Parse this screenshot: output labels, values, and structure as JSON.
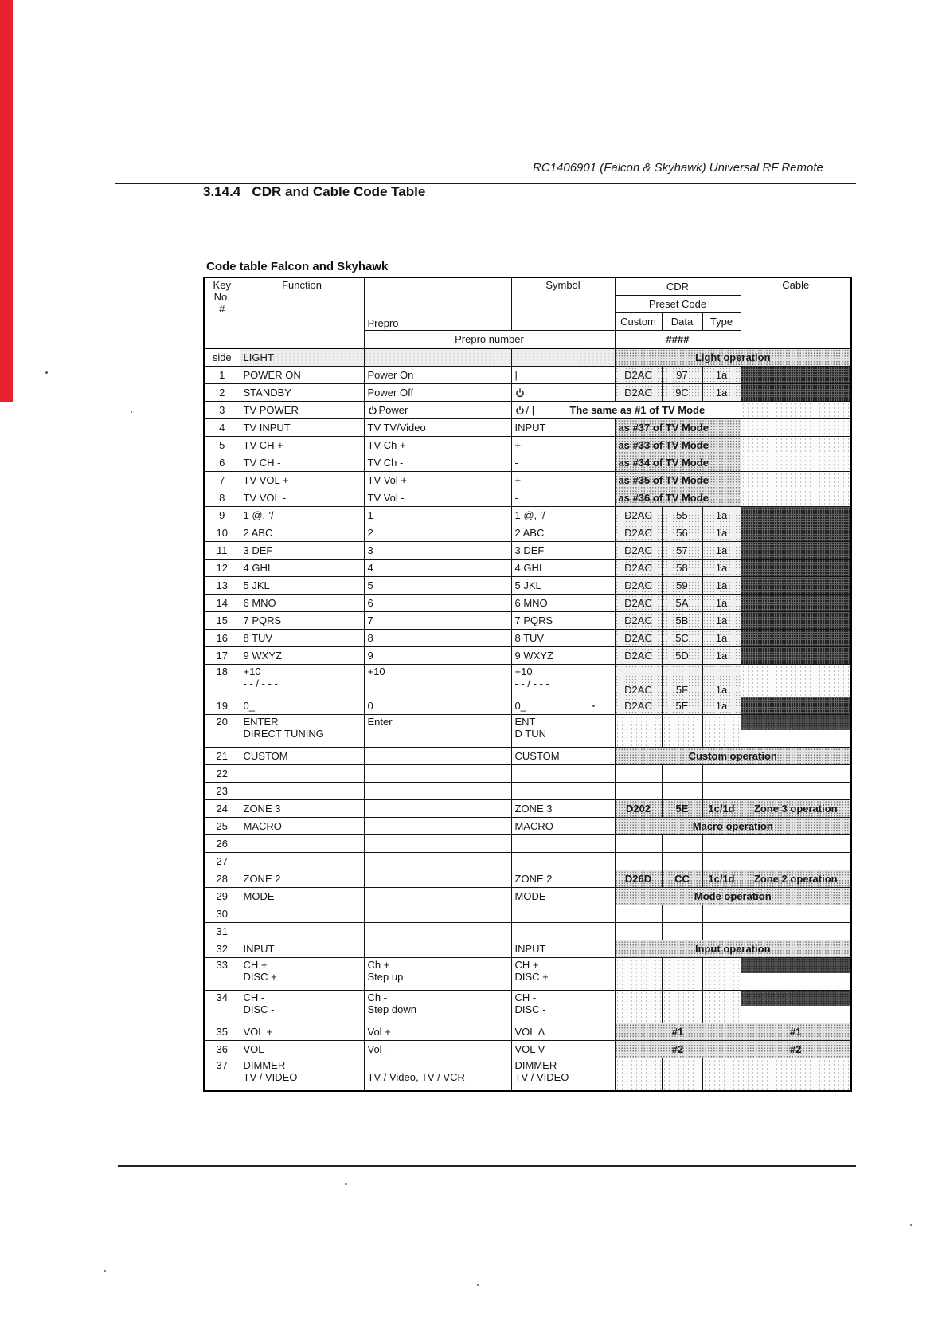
{
  "page": {
    "header_right": "RC1406901 (Falcon & Skyhawk) Universal RF Remote",
    "section_title": "3.14.4   CDR and Cable Code Table",
    "table_caption": "Code table Falcon and Skyhawk"
  },
  "colors": {
    "red_bar": "#e8232e",
    "ink": "#161616"
  },
  "table": {
    "header": {
      "key_lines": [
        "Key",
        "No.",
        "#"
      ],
      "function": "Function",
      "prepro": "Prepro",
      "prepro_number": "Prepro number",
      "symbol": "Symbol",
      "cdr": "CDR",
      "preset_code": "Preset Code",
      "custom": "Custom",
      "data": "Data",
      "type": "Type",
      "hash": "####",
      "cable": "Cable"
    },
    "rows": [
      {
        "no": "side",
        "fn": [
          "LIGHT"
        ],
        "pre": [],
        "sym": [],
        "cdr": {
          "k": "banner4",
          "t": "Light operation"
        },
        "faint": true
      },
      {
        "no": "1",
        "fn": [
          "POWER ON"
        ],
        "pre": [
          "Power On"
        ],
        "sym": [
          "|"
        ],
        "cdr": {
          "k": "codes",
          "c": "D2AC",
          "d": "97",
          "t": "1a"
        },
        "cable": "dark"
      },
      {
        "no": "2",
        "fn": [
          "STANDBY"
        ],
        "pre": [
          "Power Off"
        ],
        "sym": [
          ""
        ],
        "symicon": true,
        "cdr": {
          "k": "codes",
          "c": "D2AC",
          "d": "9C",
          "t": "1a"
        },
        "cable": "dark"
      },
      {
        "no": "3",
        "fn": [
          "TV POWER"
        ],
        "pre": [
          "Power"
        ],
        "preicon": true,
        "sym": [
          "/ |"
        ],
        "symicon": true,
        "cdr": {
          "k": "symnote",
          "t": "The same as #1 of TV Mode"
        },
        "cable": "dot"
      },
      {
        "no": "4",
        "fn": [
          "TV INPUT"
        ],
        "pre": [
          "TV TV/Video"
        ],
        "sym": [
          "INPUT"
        ],
        "cdr": {
          "k": "note",
          "t": "as #37 of TV Mode"
        },
        "cable": "dot"
      },
      {
        "no": "5",
        "fn": [
          "TV CH +"
        ],
        "pre": [
          "TV Ch +"
        ],
        "sym": [
          "+"
        ],
        "cdr": {
          "k": "note",
          "t": "as #33 of TV Mode"
        },
        "cable": "dot"
      },
      {
        "no": "6",
        "fn": [
          "TV CH -"
        ],
        "pre": [
          "TV Ch -"
        ],
        "sym": [
          "-"
        ],
        "cdr": {
          "k": "note",
          "t": "as #34 of TV Mode"
        },
        "cable": "dot"
      },
      {
        "no": "7",
        "fn": [
          "TV VOL +"
        ],
        "pre": [
          "TV Vol +"
        ],
        "sym": [
          "+"
        ],
        "cdr": {
          "k": "note",
          "t": "as #35 of TV Mode"
        },
        "cable": "dot"
      },
      {
        "no": "8",
        "fn": [
          "TV VOL -"
        ],
        "pre": [
          "TV Vol -"
        ],
        "sym": [
          "-"
        ],
        "cdr": {
          "k": "note",
          "t": "as #36 of TV Mode"
        },
        "cable": "dot"
      },
      {
        "no": "9",
        "fn": [
          "1 @,-'/"
        ],
        "pre": [
          "1"
        ],
        "sym": [
          "1 @,-'/"
        ],
        "cdr": {
          "k": "codes",
          "c": "D2AC",
          "d": "55",
          "t": "1a"
        },
        "cable": "dark"
      },
      {
        "no": "10",
        "fn": [
          "2 ABC"
        ],
        "pre": [
          "2"
        ],
        "sym": [
          "2 ABC"
        ],
        "cdr": {
          "k": "codes",
          "c": "D2AC",
          "d": "56",
          "t": "1a"
        },
        "cable": "dark"
      },
      {
        "no": "11",
        "fn": [
          "3 DEF"
        ],
        "pre": [
          "3"
        ],
        "sym": [
          "3 DEF"
        ],
        "cdr": {
          "k": "codes",
          "c": "D2AC",
          "d": "57",
          "t": "1a"
        },
        "cable": "dark"
      },
      {
        "no": "12",
        "fn": [
          "4 GHI"
        ],
        "pre": [
          "4"
        ],
        "sym": [
          "4 GHI"
        ],
        "cdr": {
          "k": "codes",
          "c": "D2AC",
          "d": "58",
          "t": "1a"
        },
        "cable": "dark"
      },
      {
        "no": "13",
        "fn": [
          "5 JKL"
        ],
        "pre": [
          "5"
        ],
        "sym": [
          "5 JKL"
        ],
        "cdr": {
          "k": "codes",
          "c": "D2AC",
          "d": "59",
          "t": "1a"
        },
        "cable": "dark"
      },
      {
        "no": "14",
        "fn": [
          "6 MNO"
        ],
        "pre": [
          "6"
        ],
        "sym": [
          "6 MNO"
        ],
        "cdr": {
          "k": "codes",
          "c": "D2AC",
          "d": "5A",
          "t": "1a"
        },
        "cable": "dark"
      },
      {
        "no": "15",
        "fn": [
          "7 PQRS"
        ],
        "pre": [
          "7"
        ],
        "sym": [
          "7 PQRS"
        ],
        "cdr": {
          "k": "codes",
          "c": "D2AC",
          "d": "5B",
          "t": "1a"
        },
        "cable": "dark"
      },
      {
        "no": "16",
        "fn": [
          "8 TUV"
        ],
        "pre": [
          "8"
        ],
        "sym": [
          "8 TUV"
        ],
        "cdr": {
          "k": "codes",
          "c": "D2AC",
          "d": "5C",
          "t": "1a"
        },
        "cable": "dark"
      },
      {
        "no": "17",
        "fn": [
          "9 WXYZ"
        ],
        "pre": [
          "9"
        ],
        "sym": [
          "9 WXYZ"
        ],
        "cdr": {
          "k": "codes",
          "c": "D2AC",
          "d": "5D",
          "t": "1a"
        },
        "cable": "dark"
      },
      {
        "no": "18",
        "fn": [
          "+10",
          "- - / - - -"
        ],
        "pre": [
          "+10"
        ],
        "sym": [
          "+10",
          "- - / - - -"
        ],
        "cdr": {
          "k": "codes",
          "c": "D2AC",
          "d": "5F",
          "t": "1a",
          "vb": true
        },
        "cable": "dot",
        "h2": true
      },
      {
        "no": "19",
        "fn": [
          "0_"
        ],
        "pre": [
          "0"
        ],
        "sym": [
          "0_"
        ],
        "cdr": {
          "k": "codes",
          "c": "D2AC",
          "d": "5E",
          "t": "1a"
        },
        "cable": "dark"
      },
      {
        "no": "20",
        "fn": [
          "ENTER",
          "DIRECT TUNING"
        ],
        "pre": [
          "Enter"
        ],
        "sym": [
          "ENT",
          "D TUN"
        ],
        "cdr": {
          "k": "dotted"
        },
        "cable": "split",
        "h2": true
      },
      {
        "no": "21",
        "fn": [
          "CUSTOM"
        ],
        "pre": [],
        "sym": [
          "CUSTOM"
        ],
        "cdr": {
          "k": "banner4",
          "t": "Custom operation"
        }
      },
      {
        "no": "22",
        "fn": [],
        "pre": [],
        "sym": [],
        "cdr": {
          "k": "plain"
        },
        "cable": "none"
      },
      {
        "no": "23",
        "fn": [],
        "pre": [],
        "sym": [],
        "cdr": {
          "k": "plain"
        },
        "cable": "none"
      },
      {
        "no": "24",
        "fn": [
          "ZONE 3"
        ],
        "pre": [],
        "sym": [
          "ZONE 3"
        ],
        "cdr": {
          "k": "codesb",
          "c": "D202",
          "d": "5E",
          "t": "1c/1d"
        },
        "cable": {
          "k": "banner",
          "t": "Zone 3 operation"
        }
      },
      {
        "no": "25",
        "fn": [
          "MACRO"
        ],
        "pre": [],
        "sym": [
          "MACRO"
        ],
        "cdr": {
          "k": "banner4",
          "t": "Macro operation"
        }
      },
      {
        "no": "26",
        "fn": [],
        "pre": [],
        "sym": [],
        "cdr": {
          "k": "plain"
        },
        "cable": "none"
      },
      {
        "no": "27",
        "fn": [],
        "pre": [],
        "sym": [],
        "cdr": {
          "k": "plain"
        },
        "cable": "none"
      },
      {
        "no": "28",
        "fn": [
          "ZONE 2"
        ],
        "pre": [],
        "sym": [
          "ZONE 2"
        ],
        "cdr": {
          "k": "codesb",
          "c": "D26D",
          "d": "CC",
          "t": "1c/1d"
        },
        "cable": {
          "k": "banner",
          "t": "Zone 2 operation"
        }
      },
      {
        "no": "29",
        "fn": [
          "MODE"
        ],
        "pre": [],
        "sym": [
          "MODE"
        ],
        "cdr": {
          "k": "banner4",
          "t": "Mode operation"
        }
      },
      {
        "no": "30",
        "fn": [],
        "pre": [],
        "sym": [],
        "cdr": {
          "k": "plain"
        },
        "cable": "none"
      },
      {
        "no": "31",
        "fn": [],
        "pre": [],
        "sym": [],
        "cdr": {
          "k": "plain"
        },
        "cable": "none"
      },
      {
        "no": "32",
        "fn": [
          "INPUT"
        ],
        "pre": [],
        "sym": [
          "INPUT"
        ],
        "cdr": {
          "k": "banner4",
          "t": "Input operation"
        }
      },
      {
        "no": "33",
        "fn": [
          "CH +",
          "DISC +"
        ],
        "pre": [
          "Ch +",
          "Step up"
        ],
        "sym": [
          "CH +",
          "DISC +"
        ],
        "cdr": {
          "k": "dotted"
        },
        "cable": "split",
        "h2": true
      },
      {
        "no": "34",
        "fn": [
          "CH -",
          "DISC -"
        ],
        "pre": [
          "Ch -",
          "Step down"
        ],
        "sym": [
          "CH -",
          "DISC -"
        ],
        "cdr": {
          "k": "dotted"
        },
        "cable": "split",
        "h2": true
      },
      {
        "no": "35",
        "fn": [
          "VOL +"
        ],
        "pre": [
          "Vol +"
        ],
        "sym": [
          "VOL Λ"
        ],
        "cdr": {
          "k": "center",
          "t": "#1"
        },
        "cable": {
          "k": "banner",
          "t": "#1",
          "center": true
        }
      },
      {
        "no": "36",
        "fn": [
          "VOL -"
        ],
        "pre": [
          "Vol -"
        ],
        "sym": [
          "VOL V"
        ],
        "cdr": {
          "k": "center",
          "t": "#2"
        },
        "cable": {
          "k": "banner",
          "t": "#2",
          "center": true
        }
      },
      {
        "no": "37",
        "fn": [
          "DIMMER",
          "TV / VIDEO"
        ],
        "pre": [
          "",
          "TV / Video, TV / VCR"
        ],
        "sym": [
          "DIMMER",
          "TV / VIDEO"
        ],
        "cdr": {
          "k": "dotted"
        },
        "cable": "dot",
        "h2": true
      }
    ]
  }
}
